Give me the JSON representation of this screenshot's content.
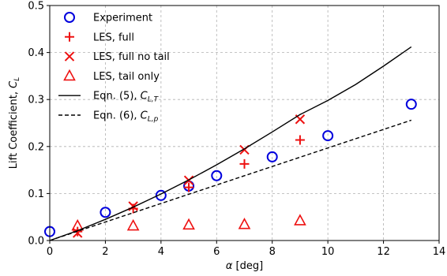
{
  "chart_data": {
    "type": "scatter",
    "xlabel_symbol": "α",
    "xlabel_unit": "[deg]",
    "ylabel_main": "Lift Coefficient, ",
    "ylabel_symbol": "C",
    "ylabel_sub": "L",
    "xlim": [
      0,
      14
    ],
    "ylim": [
      0,
      0.5
    ],
    "xticks": [
      0,
      2,
      4,
      6,
      8,
      10,
      12,
      14
    ],
    "yticks": [
      0.0,
      0.1,
      0.2,
      0.3,
      0.4,
      0.5
    ],
    "xtick_labels": [
      "0",
      "2",
      "4",
      "6",
      "8",
      "10",
      "12",
      "14"
    ],
    "ytick_labels": [
      "0.0",
      "0.1",
      "0.2",
      "0.3",
      "0.4",
      "0.5"
    ],
    "grid": true,
    "legend_position": "top-left",
    "colors": {
      "blue": "#0000dd",
      "red": "#ee1111",
      "black": "#000000",
      "grid": "#b0b0b0"
    },
    "series": [
      {
        "name": "Experiment",
        "marker": "circle",
        "color": "#0000dd",
        "points": [
          [
            0,
            0.019
          ],
          [
            2,
            0.06
          ],
          [
            4,
            0.096
          ],
          [
            5,
            0.116
          ],
          [
            6,
            0.138
          ],
          [
            8,
            0.178
          ],
          [
            10,
            0.223
          ],
          [
            13,
            0.29
          ]
        ]
      },
      {
        "name": "LES, full",
        "marker": "plus",
        "color": "#ee1111",
        "points": [
          [
            1,
            0.019
          ],
          [
            3,
            0.068
          ],
          [
            5,
            0.113
          ],
          [
            7,
            0.163
          ],
          [
            9,
            0.214
          ]
        ]
      },
      {
        "name": "LES, full no tail",
        "marker": "x",
        "color": "#ee1111",
        "points": [
          [
            1,
            0.016
          ],
          [
            3,
            0.073
          ],
          [
            5,
            0.128
          ],
          [
            7,
            0.193
          ],
          [
            9,
            0.258
          ]
        ]
      },
      {
        "name": "LES, tail only",
        "marker": "triangle",
        "color": "#ee1111",
        "points": [
          [
            1,
            0.031
          ],
          [
            3,
            0.031
          ],
          [
            5,
            0.033
          ],
          [
            7,
            0.034
          ],
          [
            9,
            0.042
          ]
        ]
      },
      {
        "name_prefix": "Eqn. (5), ",
        "name_symbol": "C",
        "name_sub": "L,T",
        "marker": "line-solid",
        "color": "#000000",
        "points": [
          [
            0,
            0.0
          ],
          [
            1,
            0.021
          ],
          [
            2,
            0.045
          ],
          [
            3,
            0.071
          ],
          [
            4,
            0.099
          ],
          [
            5,
            0.129
          ],
          [
            6,
            0.161
          ],
          [
            7,
            0.195
          ],
          [
            8,
            0.231
          ],
          [
            9,
            0.268
          ],
          [
            10,
            0.298
          ],
          [
            11,
            0.332
          ],
          [
            12,
            0.371
          ],
          [
            13,
            0.412
          ]
        ]
      },
      {
        "name_prefix": "Eqn. (6), ",
        "name_symbol": "C",
        "name_sub": "L,p",
        "marker": "line-dashed",
        "color": "#000000",
        "points": [
          [
            0,
            0.0
          ],
          [
            13,
            0.256
          ]
        ]
      }
    ]
  }
}
